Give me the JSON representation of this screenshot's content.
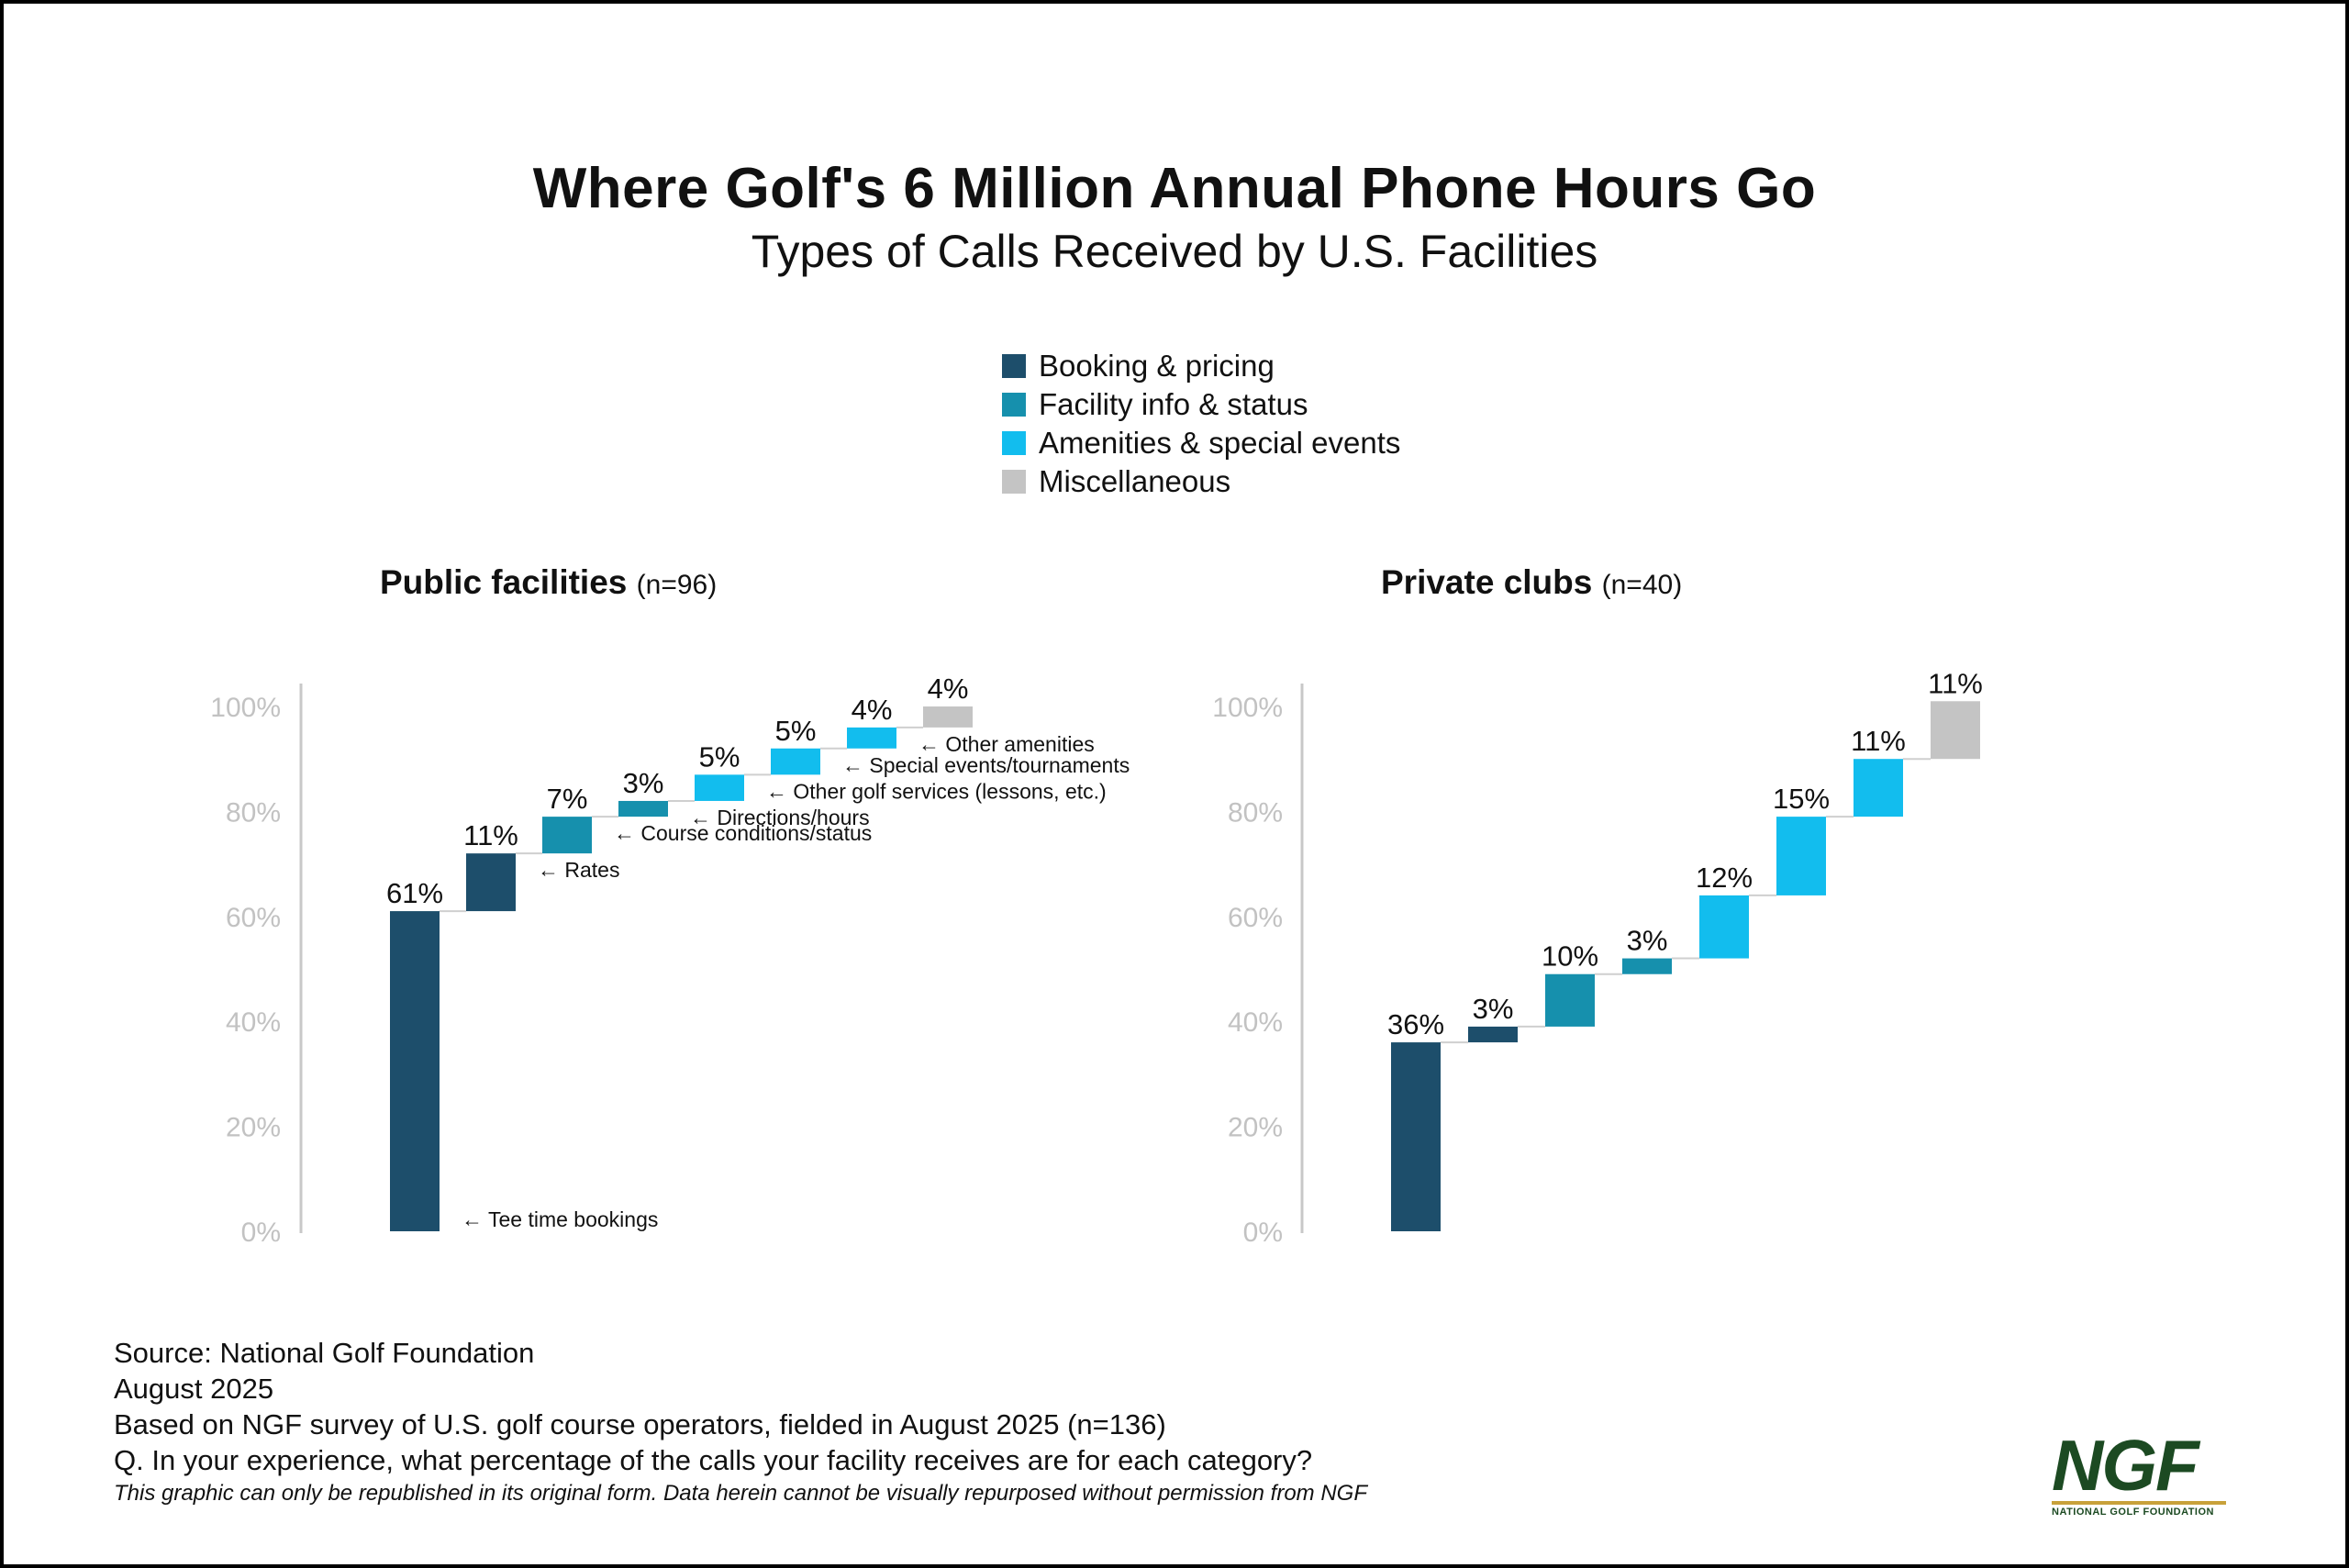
{
  "title": "Where Golf's 6 Million Annual Phone Hours Go",
  "subtitle": "Types of Calls Received by U.S. Facilities",
  "legend": [
    {
      "label": "Booking & pricing",
      "color": "#1d4e6b"
    },
    {
      "label": "Facility info & status",
      "color": "#1690ad"
    },
    {
      "label": "Amenities & special events",
      "color": "#12bdee"
    },
    {
      "label": "Miscellaneous",
      "color": "#c4c4c4"
    }
  ],
  "panels": [
    {
      "name": "Public facilities",
      "n": "(n=96)"
    },
    {
      "name": "Private clubs",
      "n": "(n=40)"
    }
  ],
  "chart_data": [
    {
      "type": "bar",
      "subtype": "waterfall",
      "title": "Public facilities (n=96)",
      "yticks": [
        "0%",
        "20%",
        "40%",
        "60%",
        "80%",
        "100%"
      ],
      "ylim": [
        0,
        100
      ],
      "bars": [
        {
          "value": 61,
          "label": "61%",
          "category": "Booking & pricing",
          "annotation": "← Tee time bookings"
        },
        {
          "value": 11,
          "label": "11%",
          "category": "Booking & pricing",
          "annotation": "← Rates"
        },
        {
          "value": 7,
          "label": "7%",
          "category": "Facility info & status",
          "annotation": "← Course conditions/status"
        },
        {
          "value": 3,
          "label": "3%",
          "category": "Facility info & status",
          "annotation": "← Directions/hours"
        },
        {
          "value": 5,
          "label": "5%",
          "category": "Amenities & special events",
          "annotation": "← Other golf services (lessons, etc.)"
        },
        {
          "value": 5,
          "label": "5%",
          "category": "Amenities & special events",
          "annotation": "← Special events/tournaments"
        },
        {
          "value": 4,
          "label": "4%",
          "category": "Amenities & special events",
          "annotation": "← Other amenities"
        },
        {
          "value": 4,
          "label": "4%",
          "category": "Miscellaneous",
          "annotation": ""
        }
      ]
    },
    {
      "type": "bar",
      "subtype": "waterfall",
      "title": "Private clubs (n=40)",
      "yticks": [
        "0%",
        "20%",
        "40%",
        "60%",
        "80%",
        "100%"
      ],
      "ylim": [
        0,
        100
      ],
      "bars": [
        {
          "value": 36,
          "label": "36%",
          "category": "Booking & pricing",
          "annotation": ""
        },
        {
          "value": 3,
          "label": "3%",
          "category": "Booking & pricing",
          "annotation": ""
        },
        {
          "value": 10,
          "label": "10%",
          "category": "Facility info & status",
          "annotation": ""
        },
        {
          "value": 3,
          "label": "3%",
          "category": "Facility info & status",
          "annotation": ""
        },
        {
          "value": 12,
          "label": "12%",
          "category": "Amenities & special events",
          "annotation": ""
        },
        {
          "value": 15,
          "label": "15%",
          "category": "Amenities & special events",
          "annotation": ""
        },
        {
          "value": 11,
          "label": "11%",
          "category": "Amenities & special events",
          "annotation": ""
        },
        {
          "value": 11,
          "label": "11%",
          "category": "Miscellaneous",
          "annotation": ""
        }
      ]
    }
  ],
  "footer": {
    "source": "Source: National Golf Foundation",
    "date": "August 2025",
    "basis": "Based on NGF survey of U.S. golf course operators, fielded in August 2025 (n=136)",
    "question": "Q. In your experience, what percentage of the calls your facility receives are for each category?",
    "note": "This graphic can only be republished in its original form. Data herein cannot be visually repurposed without permission from NGF"
  },
  "logo": {
    "main": "NGF",
    "sub": "NATIONAL GOLF FOUNDATION"
  }
}
